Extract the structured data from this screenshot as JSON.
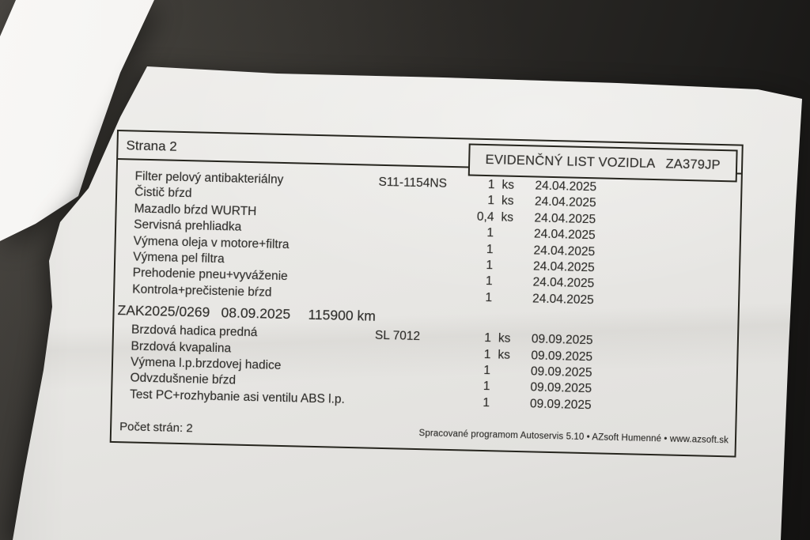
{
  "photo": {
    "background_color": "#2c2a27",
    "paper_color": "#eae9e6",
    "ink_color": "#2e2d2a"
  },
  "document": {
    "page_label": "Strana 2",
    "title": "EVIDENČNÝ LIST VOZIDLA",
    "plate": "ZA379JP",
    "sections": [
      {
        "rows": [
          {
            "name": "Filter pelový antibakteriálny",
            "part_no": "S11-1154NS",
            "qty": "1",
            "unit": "ks",
            "date": "24.04.2025"
          },
          {
            "name": "Čistič bŕzd",
            "qty": "1",
            "unit": "ks",
            "date": "24.04.2025"
          },
          {
            "name": "Mazadlo bŕzd WURTH",
            "qty": "0,4",
            "unit": "ks",
            "date": "24.04.2025"
          },
          {
            "name": "Servisná prehliadka",
            "qty": "1",
            "date": "24.04.2025"
          },
          {
            "name": "Výmena oleja v motore+filtra",
            "qty": "1",
            "date": "24.04.2025"
          },
          {
            "name": "Výmena pel filtra",
            "qty": "1",
            "date": "24.04.2025"
          },
          {
            "name": "Prehodenie pneu+vyváženie",
            "qty": "1",
            "date": "24.04.2025"
          },
          {
            "name": "Kontrola+prečistenie bŕzd",
            "qty": "1",
            "date": "24.04.2025"
          }
        ]
      },
      {
        "header": {
          "order_no": "ZAK2025/0269",
          "date": "08.09.2025",
          "odometer": "115900 km"
        },
        "rows": [
          {
            "name": "Brzdová hadica predná",
            "part_no": "SL 7012",
            "qty": "1",
            "unit": "ks",
            "date": "09.09.2025"
          },
          {
            "name": "Brzdová kvapalina",
            "qty": "1",
            "unit": "ks",
            "date": "09.09.2025"
          },
          {
            "name": "Výmena l.p.brzdovej hadice",
            "qty": "1",
            "date": "09.09.2025"
          },
          {
            "name": "Odvzdušnenie bŕzd",
            "qty": "1",
            "date": "09.09.2025"
          },
          {
            "name": "Test PC+rozhybanie asi ventilu ABS l.p.",
            "qty": "1",
            "date": "09.09.2025"
          }
        ]
      }
    ],
    "footer": {
      "page_count": "Počet strán: 2",
      "credit": "Spracované programom Autoservis 5.10 • AZsoft Humenné • www.azsoft.sk"
    }
  }
}
